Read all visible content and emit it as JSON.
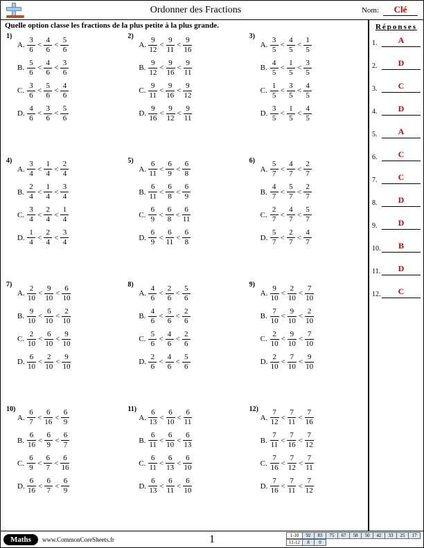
{
  "header": {
    "title": "Ordonner des Fractions",
    "nom_label": "Nom:",
    "cle": "Clé"
  },
  "instruction": "Quelle option classe les fractions de la plus petite à la plus grande.",
  "answers_title": "Réponses",
  "problems": [
    {
      "n": "1)",
      "opts": [
        {
          "l": "A.",
          "f": [
            [
              "3",
              "6"
            ],
            [
              "4",
              "6"
            ],
            [
              "5",
              "6"
            ]
          ]
        },
        {
          "l": "B.",
          "f": [
            [
              "5",
              "6"
            ],
            [
              "4",
              "6"
            ],
            [
              "3",
              "6"
            ]
          ]
        },
        {
          "l": "C.",
          "f": [
            [
              "3",
              "6"
            ],
            [
              "5",
              "6"
            ],
            [
              "4",
              "6"
            ]
          ]
        },
        {
          "l": "D.",
          "f": [
            [
              "4",
              "6"
            ],
            [
              "3",
              "6"
            ],
            [
              "5",
              "6"
            ]
          ]
        }
      ]
    },
    {
      "n": "2)",
      "opts": [
        {
          "l": "A.",
          "f": [
            [
              "9",
              "12"
            ],
            [
              "9",
              "11"
            ],
            [
              "9",
              "16"
            ]
          ]
        },
        {
          "l": "B.",
          "f": [
            [
              "9",
              "12"
            ],
            [
              "9",
              "16"
            ],
            [
              "9",
              "11"
            ]
          ]
        },
        {
          "l": "C.",
          "f": [
            [
              "9",
              "11"
            ],
            [
              "9",
              "16"
            ],
            [
              "9",
              "12"
            ]
          ]
        },
        {
          "l": "D.",
          "f": [
            [
              "9",
              "16"
            ],
            [
              "9",
              "12"
            ],
            [
              "9",
              "11"
            ]
          ]
        }
      ]
    },
    {
      "n": "3)",
      "opts": [
        {
          "l": "A.",
          "f": [
            [
              "3",
              "5"
            ],
            [
              "4",
              "5"
            ],
            [
              "1",
              "5"
            ]
          ]
        },
        {
          "l": "B.",
          "f": [
            [
              "4",
              "5"
            ],
            [
              "1",
              "5"
            ],
            [
              "3",
              "5"
            ]
          ]
        },
        {
          "l": "C.",
          "f": [
            [
              "1",
              "5"
            ],
            [
              "3",
              "5"
            ],
            [
              "4",
              "5"
            ]
          ]
        },
        {
          "l": "D.",
          "f": [
            [
              "3",
              "5"
            ],
            [
              "1",
              "5"
            ],
            [
              "4",
              "5"
            ]
          ]
        }
      ]
    },
    {
      "n": "4)",
      "opts": [
        {
          "l": "A.",
          "f": [
            [
              "3",
              "4"
            ],
            [
              "1",
              "4"
            ],
            [
              "2",
              "4"
            ]
          ]
        },
        {
          "l": "B.",
          "f": [
            [
              "2",
              "4"
            ],
            [
              "1",
              "4"
            ],
            [
              "3",
              "4"
            ]
          ]
        },
        {
          "l": "C.",
          "f": [
            [
              "3",
              "4"
            ],
            [
              "2",
              "4"
            ],
            [
              "1",
              "4"
            ]
          ]
        },
        {
          "l": "D.",
          "f": [
            [
              "1",
              "4"
            ],
            [
              "2",
              "4"
            ],
            [
              "3",
              "4"
            ]
          ]
        }
      ]
    },
    {
      "n": "5)",
      "opts": [
        {
          "l": "A.",
          "f": [
            [
              "6",
              "11"
            ],
            [
              "6",
              "9"
            ],
            [
              "6",
              "8"
            ]
          ]
        },
        {
          "l": "B.",
          "f": [
            [
              "6",
              "11"
            ],
            [
              "6",
              "8"
            ],
            [
              "6",
              "9"
            ]
          ]
        },
        {
          "l": "C.",
          "f": [
            [
              "6",
              "9"
            ],
            [
              "6",
              "8"
            ],
            [
              "6",
              "11"
            ]
          ]
        },
        {
          "l": "D.",
          "f": [
            [
              "6",
              "9"
            ],
            [
              "6",
              "11"
            ],
            [
              "6",
              "8"
            ]
          ]
        }
      ]
    },
    {
      "n": "6)",
      "opts": [
        {
          "l": "A.",
          "f": [
            [
              "5",
              "7"
            ],
            [
              "4",
              "7"
            ],
            [
              "2",
              "7"
            ]
          ]
        },
        {
          "l": "B.",
          "f": [
            [
              "4",
              "7"
            ],
            [
              "5",
              "7"
            ],
            [
              "2",
              "7"
            ]
          ]
        },
        {
          "l": "C.",
          "f": [
            [
              "2",
              "7"
            ],
            [
              "4",
              "7"
            ],
            [
              "5",
              "7"
            ]
          ]
        },
        {
          "l": "D.",
          "f": [
            [
              "5",
              "7"
            ],
            [
              "2",
              "7"
            ],
            [
              "4",
              "7"
            ]
          ]
        }
      ]
    },
    {
      "n": "7)",
      "opts": [
        {
          "l": "A.",
          "f": [
            [
              "2",
              "10"
            ],
            [
              "9",
              "10"
            ],
            [
              "6",
              "10"
            ]
          ]
        },
        {
          "l": "B.",
          "f": [
            [
              "9",
              "10"
            ],
            [
              "6",
              "10"
            ],
            [
              "2",
              "10"
            ]
          ]
        },
        {
          "l": "C.",
          "f": [
            [
              "2",
              "10"
            ],
            [
              "6",
              "10"
            ],
            [
              "9",
              "10"
            ]
          ]
        },
        {
          "l": "D.",
          "f": [
            [
              "6",
              "10"
            ],
            [
              "2",
              "10"
            ],
            [
              "9",
              "10"
            ]
          ]
        }
      ]
    },
    {
      "n": "8)",
      "opts": [
        {
          "l": "A.",
          "f": [
            [
              "4",
              "6"
            ],
            [
              "2",
              "6"
            ],
            [
              "5",
              "6"
            ]
          ]
        },
        {
          "l": "B.",
          "f": [
            [
              "4",
              "6"
            ],
            [
              "5",
              "6"
            ],
            [
              "2",
              "6"
            ]
          ]
        },
        {
          "l": "C.",
          "f": [
            [
              "5",
              "6"
            ],
            [
              "4",
              "6"
            ],
            [
              "2",
              "6"
            ]
          ]
        },
        {
          "l": "D.",
          "f": [
            [
              "2",
              "6"
            ],
            [
              "4",
              "6"
            ],
            [
              "5",
              "6"
            ]
          ]
        }
      ]
    },
    {
      "n": "9)",
      "opts": [
        {
          "l": "A.",
          "f": [
            [
              "9",
              "10"
            ],
            [
              "2",
              "10"
            ],
            [
              "7",
              "10"
            ]
          ]
        },
        {
          "l": "B.",
          "f": [
            [
              "7",
              "10"
            ],
            [
              "9",
              "10"
            ],
            [
              "2",
              "10"
            ]
          ]
        },
        {
          "l": "C.",
          "f": [
            [
              "2",
              "10"
            ],
            [
              "9",
              "10"
            ],
            [
              "7",
              "10"
            ]
          ]
        },
        {
          "l": "D.",
          "f": [
            [
              "2",
              "10"
            ],
            [
              "7",
              "10"
            ],
            [
              "9",
              "10"
            ]
          ]
        }
      ]
    },
    {
      "n": "10)",
      "opts": [
        {
          "l": "A.",
          "f": [
            [
              "6",
              "7"
            ],
            [
              "6",
              "16"
            ],
            [
              "6",
              "9"
            ]
          ]
        },
        {
          "l": "B.",
          "f": [
            [
              "6",
              "16"
            ],
            [
              "6",
              "9"
            ],
            [
              "6",
              "7"
            ]
          ]
        },
        {
          "l": "C.",
          "f": [
            [
              "6",
              "9"
            ],
            [
              "6",
              "7"
            ],
            [
              "6",
              "16"
            ]
          ]
        },
        {
          "l": "D.",
          "f": [
            [
              "6",
              "16"
            ],
            [
              "6",
              "7"
            ],
            [
              "6",
              "9"
            ]
          ]
        }
      ]
    },
    {
      "n": "11)",
      "opts": [
        {
          "l": "A.",
          "f": [
            [
              "6",
              "13"
            ],
            [
              "6",
              "10"
            ],
            [
              "6",
              "11"
            ]
          ]
        },
        {
          "l": "B.",
          "f": [
            [
              "6",
              "11"
            ],
            [
              "6",
              "10"
            ],
            [
              "6",
              "13"
            ]
          ]
        },
        {
          "l": "C.",
          "f": [
            [
              "6",
              "11"
            ],
            [
              "6",
              "13"
            ],
            [
              "6",
              "10"
            ]
          ]
        },
        {
          "l": "D.",
          "f": [
            [
              "6",
              "13"
            ],
            [
              "6",
              "11"
            ],
            [
              "6",
              "10"
            ]
          ]
        }
      ]
    },
    {
      "n": "12)",
      "opts": [
        {
          "l": "A.",
          "f": [
            [
              "7",
              "12"
            ],
            [
              "7",
              "11"
            ],
            [
              "7",
              "16"
            ]
          ]
        },
        {
          "l": "B.",
          "f": [
            [
              "7",
              "11"
            ],
            [
              "7",
              "16"
            ],
            [
              "7",
              "12"
            ]
          ]
        },
        {
          "l": "C.",
          "f": [
            [
              "7",
              "16"
            ],
            [
              "7",
              "12"
            ],
            [
              "7",
              "11"
            ]
          ]
        },
        {
          "l": "D.",
          "f": [
            [
              "7",
              "16"
            ],
            [
              "7",
              "11"
            ],
            [
              "7",
              "12"
            ]
          ]
        }
      ]
    }
  ],
  "answers": [
    "A",
    "D",
    "C",
    "D",
    "A",
    "C",
    "C",
    "D",
    "D",
    "B",
    "D",
    "C"
  ],
  "footer": {
    "badge": "Maths",
    "url": "www.CommonCoreSheets.fr",
    "page": "1",
    "score_rows": [
      {
        "label": "1-10",
        "vals": [
          "92",
          "83",
          "75",
          "67",
          "58",
          "50",
          "42",
          "33",
          "25",
          "17"
        ]
      },
      {
        "label": "11-12",
        "vals": [
          "8",
          "0"
        ]
      }
    ]
  },
  "colors": {
    "accent": "#d00000",
    "score_bg": "#d8e8f4"
  }
}
